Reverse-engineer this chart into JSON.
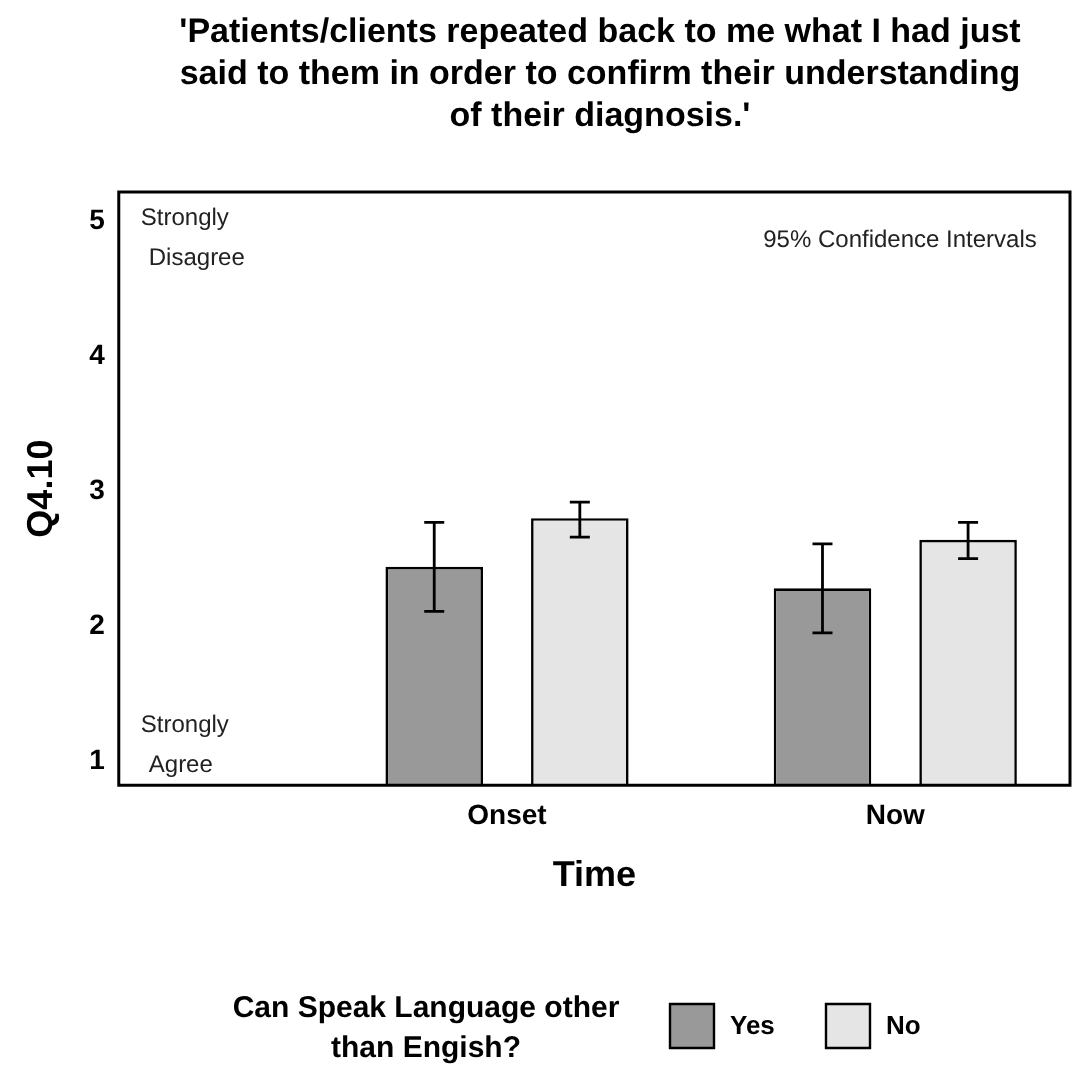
{
  "chart_data": {
    "type": "bar",
    "title": "'Patients/clients repeated back to me what I had just said to them in order to confirm their understanding of their diagnosis.'",
    "xlabel": "Time",
    "ylabel": "Q4.10",
    "legend_title": "Can Speak Language other than Engish?",
    "categories": [
      "Onset",
      "Now"
    ],
    "series": [
      {
        "name": "Yes",
        "color": "#999999",
        "values": [
          2.44,
          2.28
        ],
        "errors": [
          [
            2.11,
            2.77
          ],
          [
            1.95,
            2.61
          ]
        ]
      },
      {
        "name": "No",
        "color": "#e5e5e5",
        "values": [
          2.8,
          2.64
        ],
        "errors": [
          [
            2.66,
            2.92
          ],
          [
            2.5,
            2.77
          ]
        ]
      }
    ],
    "ylim": [
      0.82,
      5.22
    ],
    "yticks": [
      1,
      2,
      3,
      4,
      5
    ],
    "grid": false,
    "legend": "bottom",
    "annotations": [
      "Strongly Disagree",
      "Strongly Agree",
      "95% Confidence Intervals"
    ]
  }
}
